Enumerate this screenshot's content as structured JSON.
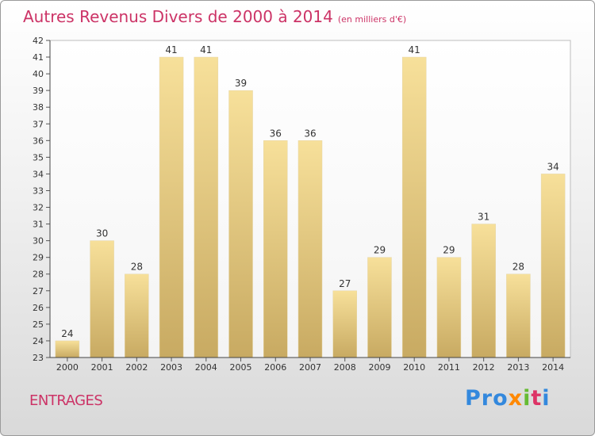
{
  "header": {
    "title": "Autres Revenus Divers de 2000 à 2014",
    "unit": "(en milliers d'€)"
  },
  "location": {
    "name": "ENTRAGES"
  },
  "logo": {
    "text": "Proxiti",
    "colors": [
      "#3388dd",
      "#ff8800",
      "#66bb33",
      "#dd3366",
      "#3388dd"
    ]
  },
  "chart_data": {
    "type": "bar",
    "title": "Autres Revenus Divers de 2000 à 2014",
    "categories": [
      "2000",
      "2001",
      "2002",
      "2003",
      "2004",
      "2005",
      "2006",
      "2007",
      "2008",
      "2009",
      "2010",
      "2011",
      "2012",
      "2013",
      "2014"
    ],
    "values": [
      24,
      30,
      28,
      41,
      41,
      39,
      36,
      36,
      27,
      29,
      41,
      29,
      31,
      28,
      34
    ],
    "ylim": [
      23,
      42
    ],
    "yticks": [
      23,
      24,
      25,
      26,
      27,
      28,
      29,
      30,
      31,
      32,
      33,
      34,
      35,
      36,
      37,
      38,
      39,
      40,
      41,
      42
    ],
    "grid": false,
    "bar_color": "#e8cf86",
    "title_color": "#cc3366"
  }
}
